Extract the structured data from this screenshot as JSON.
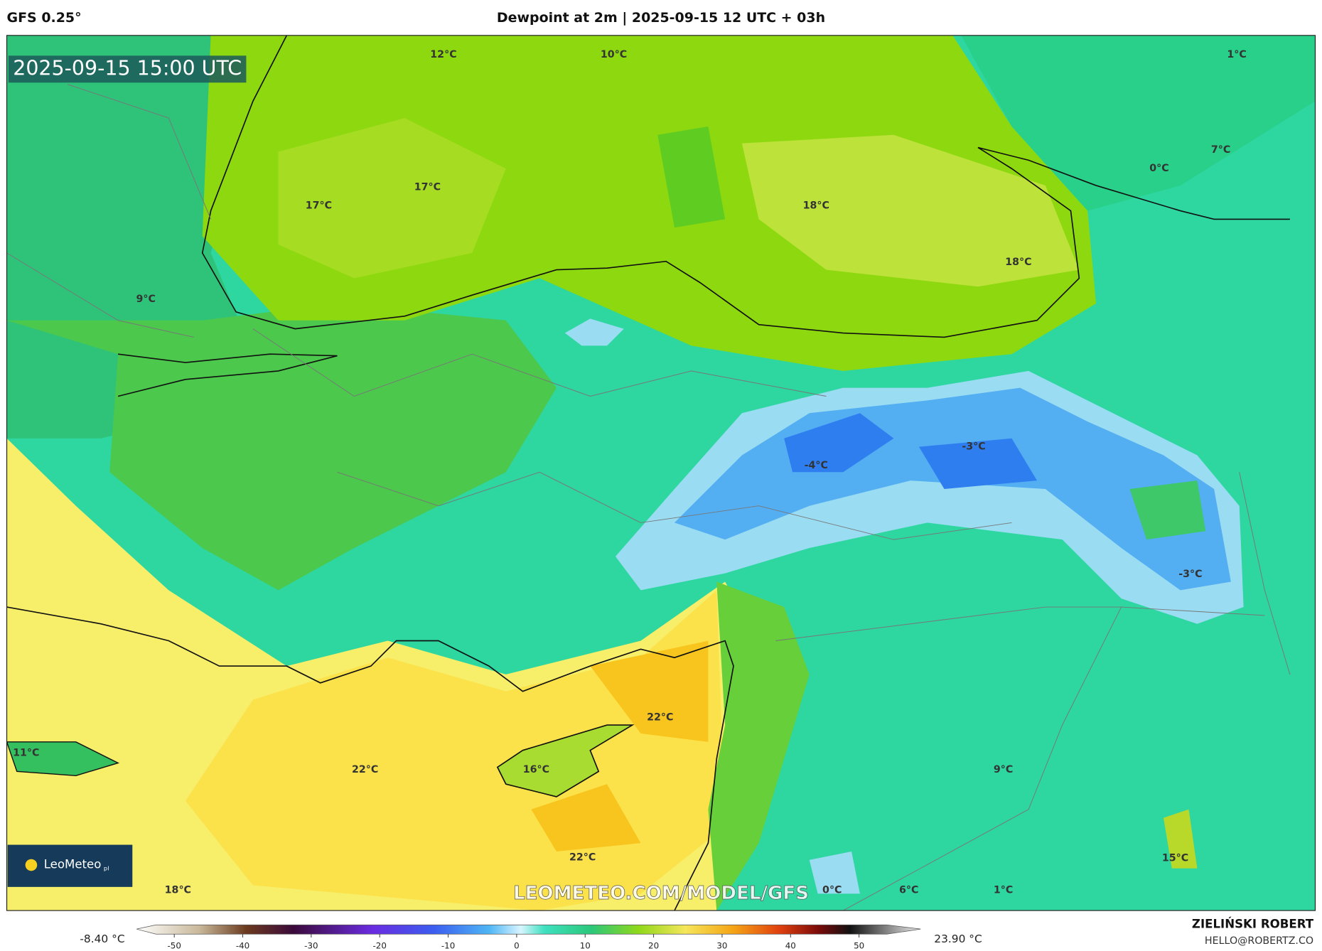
{
  "header": {
    "model": "GFS 0.25°",
    "title": "Dewpoint at 2m | 2025-09-15 12 UTC + 03h"
  },
  "map": {
    "valid_time": "2025-09-15 15:00 UTC",
    "labels": [
      "12°C",
      "10°C",
      "1°C",
      "0°C",
      "7°C",
      "17°C",
      "17°C",
      "18°C",
      "18°C",
      "9°C",
      "-3°C",
      "-4°C",
      "-3°C",
      "22°C",
      "16°C",
      "11°C",
      "22°C",
      "9°C",
      "22°C",
      "15°C",
      "18°C",
      "0°C",
      "6°C",
      "1°C"
    ],
    "logo": "LeoMeteo",
    "logo_suffix": "pl",
    "watermark": "LEOMETEO.COM/MODEL/GFS"
  },
  "colorbar": {
    "min_label": "-8.40 °C",
    "max_label": "23.90 °C",
    "lim": [
      -55.5,
      59
    ],
    "ticks": [
      -50,
      -40,
      -30,
      -20,
      -10,
      0,
      10,
      20,
      30,
      40,
      50
    ]
  },
  "footer": {
    "author": "ZIELIŃSKI ROBERT",
    "email": "HELLO@ROBERTZ.CO"
  }
}
